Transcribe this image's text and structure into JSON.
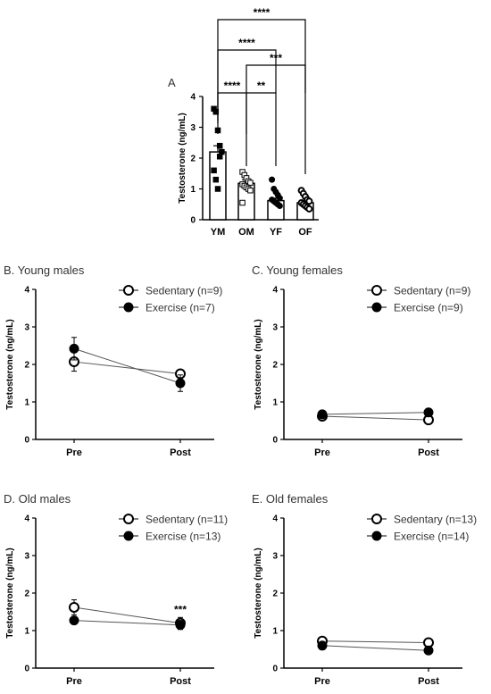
{
  "chart_data": [
    {
      "panel": "A",
      "type": "bar",
      "title": "",
      "ylabel": "Testosterone (ng/mL)",
      "ylim": [
        0,
        4
      ],
      "yticks": [
        0,
        1,
        2,
        3,
        4
      ],
      "categories": [
        "YM",
        "OM",
        "YF",
        "OF"
      ],
      "values": [
        2.2,
        1.18,
        0.62,
        0.55
      ],
      "errors": [
        0.2,
        0.12,
        0.08,
        0.05
      ],
      "markers": [
        "filled-square",
        "open-square",
        "filled-circle",
        "open-circle"
      ],
      "points": [
        [
          3.6,
          3.5,
          2.9,
          2.4,
          2.2,
          1.6,
          1.3,
          1.0,
          2.05
        ],
        [
          1.55,
          1.45,
          1.35,
          1.25,
          1.2,
          1.15,
          1.1,
          1.05,
          1.0,
          0.95,
          0.55
        ],
        [
          1.3,
          1.0,
          0.9,
          0.8,
          0.7,
          0.65,
          0.6,
          0.55,
          0.5,
          0.45
        ],
        [
          0.95,
          0.85,
          0.75,
          0.65,
          0.6,
          0.55,
          0.5,
          0.45,
          0.4,
          0.35
        ]
      ],
      "significance": [
        {
          "from": "YM",
          "to": "OM",
          "label": "****"
        },
        {
          "from": "OM",
          "to": "YF",
          "label": "**"
        },
        {
          "from": "YM",
          "to": "YF",
          "label": "****"
        },
        {
          "from": "OM",
          "to": "OF",
          "label": "***"
        },
        {
          "from": "YM",
          "to": "OF",
          "label": "****"
        }
      ]
    },
    {
      "panel": "B",
      "title": "B. Young males",
      "type": "line",
      "categories": [
        "Pre",
        "Post"
      ],
      "ylabel": "Testosterone (ng/mL)",
      "ylim": [
        0,
        4
      ],
      "yticks": [
        0,
        1,
        2,
        3,
        4
      ],
      "series": [
        {
          "name": "Sedentary (n=9)",
          "marker": "open",
          "values": [
            2.07,
            1.75
          ],
          "errors": [
            0.25,
            0.08
          ]
        },
        {
          "name": "Exercise (n=7)",
          "marker": "filled",
          "values": [
            2.42,
            1.5
          ],
          "errors": [
            0.3,
            0.22
          ]
        }
      ],
      "annotations": []
    },
    {
      "panel": "C",
      "title": "C. Young females",
      "type": "line",
      "categories": [
        "Pre",
        "Post"
      ],
      "ylabel": "Testosterone (ng/mL)",
      "ylim": [
        0,
        4
      ],
      "yticks": [
        0,
        1,
        2,
        3,
        4
      ],
      "series": [
        {
          "name": "Sedentary (n=9)",
          "marker": "open",
          "values": [
            0.62,
            0.52
          ],
          "errors": [
            0.06,
            0.05
          ]
        },
        {
          "name": "Exercise (n=9)",
          "marker": "filled",
          "values": [
            0.67,
            0.72
          ],
          "errors": [
            0.06,
            0.1
          ]
        }
      ],
      "annotations": []
    },
    {
      "panel": "D",
      "title": "D. Old males",
      "type": "line",
      "categories": [
        "Pre",
        "Post"
      ],
      "ylabel": "Testosterone (ng/mL)",
      "ylim": [
        0,
        4
      ],
      "yticks": [
        0,
        1,
        2,
        3,
        4
      ],
      "series": [
        {
          "name": "Sedentary (n=11)",
          "marker": "open",
          "values": [
            1.62,
            1.2
          ],
          "errors": [
            0.2,
            0.15
          ]
        },
        {
          "name": "Exercise (n=13)",
          "marker": "filled",
          "values": [
            1.27,
            1.15
          ],
          "errors": [
            0.08,
            0.12
          ]
        }
      ],
      "annotations": [
        {
          "category": "Post",
          "label": "***"
        }
      ]
    },
    {
      "panel": "E",
      "title": "E. Old females",
      "type": "line",
      "categories": [
        "Pre",
        "Post"
      ],
      "ylabel": "Testosterone (ng/mL)",
      "ylim": [
        0,
        4
      ],
      "yticks": [
        0,
        1,
        2,
        3,
        4
      ],
      "series": [
        {
          "name": "Sedentary (n=13)",
          "marker": "open",
          "values": [
            0.72,
            0.68
          ],
          "errors": [
            0.05,
            0.05
          ]
        },
        {
          "name": "Exercise (n=14)",
          "marker": "filled",
          "values": [
            0.6,
            0.47
          ],
          "errors": [
            0.04,
            0.04
          ]
        }
      ],
      "annotations": []
    }
  ]
}
